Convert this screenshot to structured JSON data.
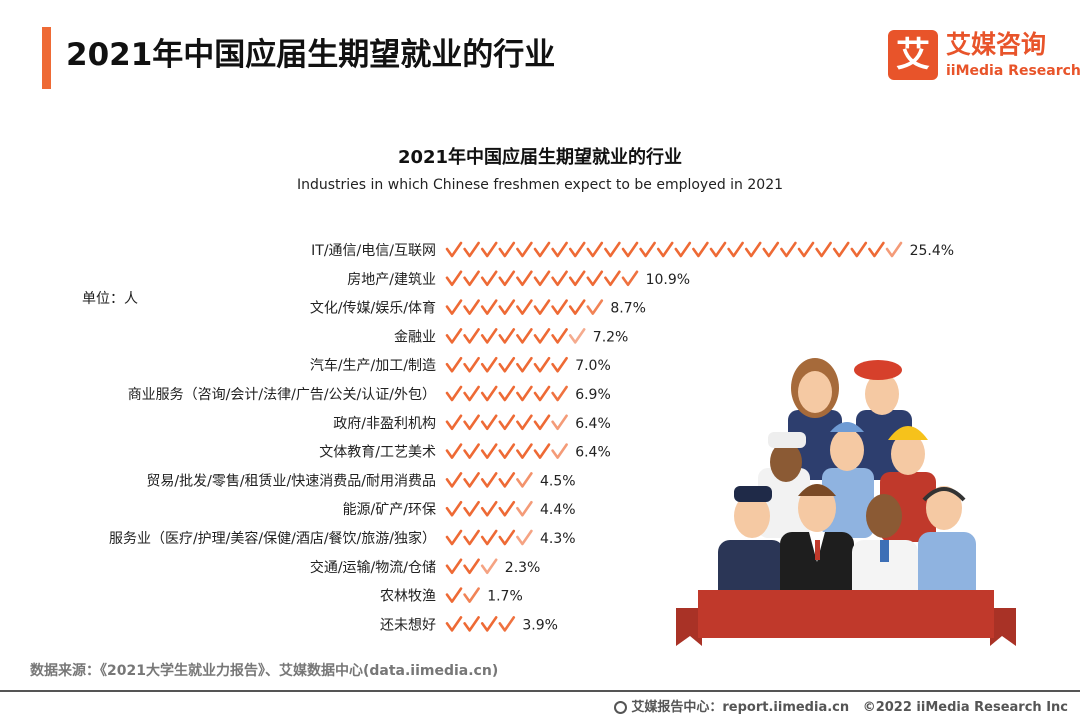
{
  "header": {
    "title": "2021年中国应届生期望就业的行业",
    "logo_mark": "艾",
    "logo_cn": "艾媒咨询",
    "logo_en": "iiMedia Research"
  },
  "chart_data": {
    "type": "bar",
    "title": "2021年中国应届生期望就业的行业",
    "subtitle": "Industries in which Chinese freshmen expect to be employed in 2021",
    "unit_note": "单位：人",
    "categories": [
      "IT/通信/电信/互联网",
      "房地产/建筑业",
      "文化/传媒/娱乐/体育",
      "金融业",
      "汽车/生产/加工/制造",
      "商业服务（咨询/会计/法律/广告/公关/认证/外包）",
      "政府/非盈利机构",
      "文体教育/工艺美术",
      "贸易/批发/零售/租赁业/快速消费品/耐用消费品",
      "能源/矿产/环保",
      "服务业（医疗/护理/美容/保健/酒店/餐饮/旅游/独家）",
      "交通/运输/物流/仓储",
      "农林牧渔",
      "还未想好"
    ],
    "values": [
      25.4,
      10.9,
      8.7,
      7.2,
      7.0,
      6.9,
      6.4,
      6.4,
      4.5,
      4.4,
      4.3,
      2.3,
      1.7,
      3.9
    ],
    "value_labels": [
      "25.4%",
      "10.9%",
      "8.7%",
      "7.2%",
      "7.0%",
      "6.9%",
      "6.4%",
      "6.4%",
      "4.5%",
      "4.4%",
      "4.3%",
      "2.3%",
      "1.7%",
      "3.9%"
    ],
    "mark": "check-icon",
    "color": "#ee6a35",
    "orientation": "horizontal"
  },
  "source": "数据来源：《2021大学生就业力报告》、艾媒数据中心(data.iimedia.cn)",
  "footer": {
    "report_site": "艾媒报告中心：report.iimedia.cn",
    "copyright": "©2022  iiMedia Research  Inc"
  }
}
